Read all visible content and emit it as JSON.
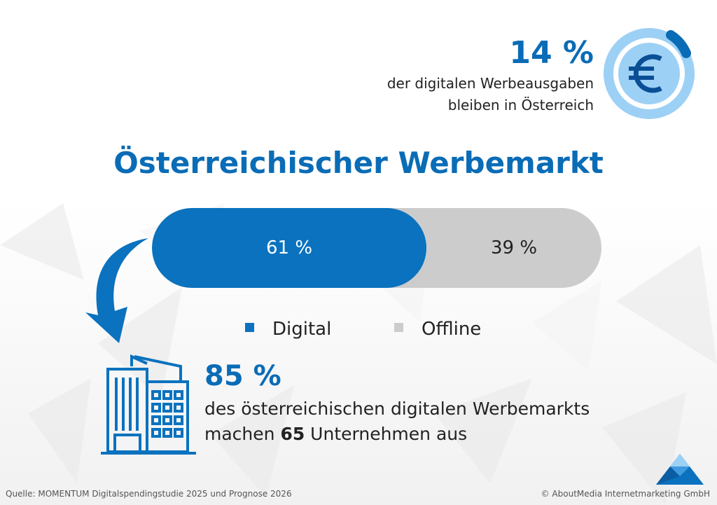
{
  "colors": {
    "digital": "#0a72be",
    "offline": "#cccccc",
    "accent": "#0a6cb6"
  },
  "highlight_top": {
    "percent": "14 %",
    "line1": "der digitalen Werbeausgaben",
    "line2": "bleiben in Österreich",
    "icon": "euro-icon"
  },
  "chart_data": {
    "type": "bar",
    "orientation": "horizontal-stacked",
    "title": "Österreichischer Werbemarkt",
    "series": [
      {
        "name": "Digital",
        "value": 61,
        "label": "61 %"
      },
      {
        "name": "Offline",
        "value": 39,
        "label": "39 %"
      }
    ],
    "legend": {
      "placement": "bottom",
      "items": [
        "Digital",
        "Offline"
      ]
    }
  },
  "highlight_bottom": {
    "percent": "85 %",
    "line1": "des österreichischen digitalen Werbemarkts",
    "line2_pre": "machen ",
    "line2_bold": "65",
    "line2_post": " Unternehmen aus",
    "icon": "building-icon"
  },
  "footer": {
    "source": "Quelle: MOMENTUM Digitalspendingstudie 2025 und Prognose 2026",
    "copyright": "© AboutMedia Internetmarketing GmbH"
  }
}
